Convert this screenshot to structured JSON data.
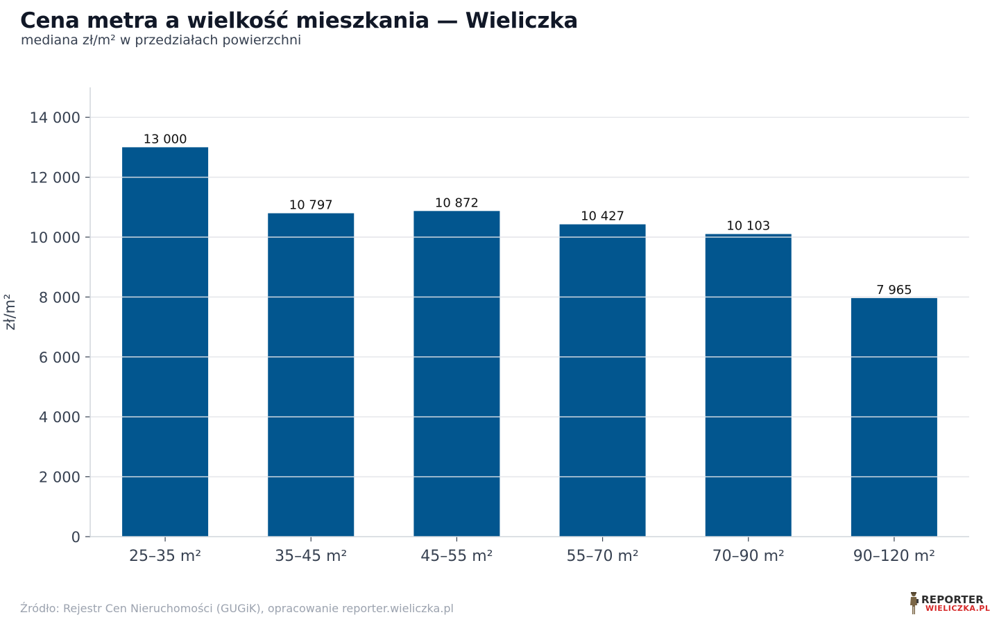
{
  "title": "Cena metra a wielkość mieszkania — Wieliczka",
  "subtitle": "mediana zł/m² w przedziałach powierzchni",
  "source": "Źródło: Rejestr Cen Nieruchomości (GUGiK), opracowanie reporter.wieliczka.pl",
  "logo": {
    "top": "REPORTER",
    "bottom": "WIELICZKA.PL",
    "icon": "reporter-figure-icon"
  },
  "colors": {
    "bar": "#02568F",
    "grid": "#e5e7eb",
    "axis": "#d1d5db",
    "tick_text": "#374151",
    "label_text": "#111111"
  },
  "chart_data": {
    "type": "bar",
    "categories": [
      "25–35 m²",
      "35–45 m²",
      "45–55 m²",
      "55–70 m²",
      "70–90 m²",
      "90–120 m²"
    ],
    "values": [
      13000,
      10797,
      10872,
      10427,
      10103,
      7965
    ],
    "value_labels": [
      "13 000",
      "10 797",
      "10 872",
      "10 427",
      "10 103",
      "7 965"
    ],
    "ylabel": "zł/m²",
    "xlabel": "",
    "ylim": [
      0,
      15000
    ],
    "yticks": [
      0,
      2000,
      4000,
      6000,
      8000,
      10000,
      12000,
      14000
    ],
    "ytick_labels": [
      "0",
      "2 000",
      "4 000",
      "6 000",
      "8 000",
      "10 000",
      "12 000",
      "14 000"
    ],
    "grid": true,
    "legend": "none"
  }
}
